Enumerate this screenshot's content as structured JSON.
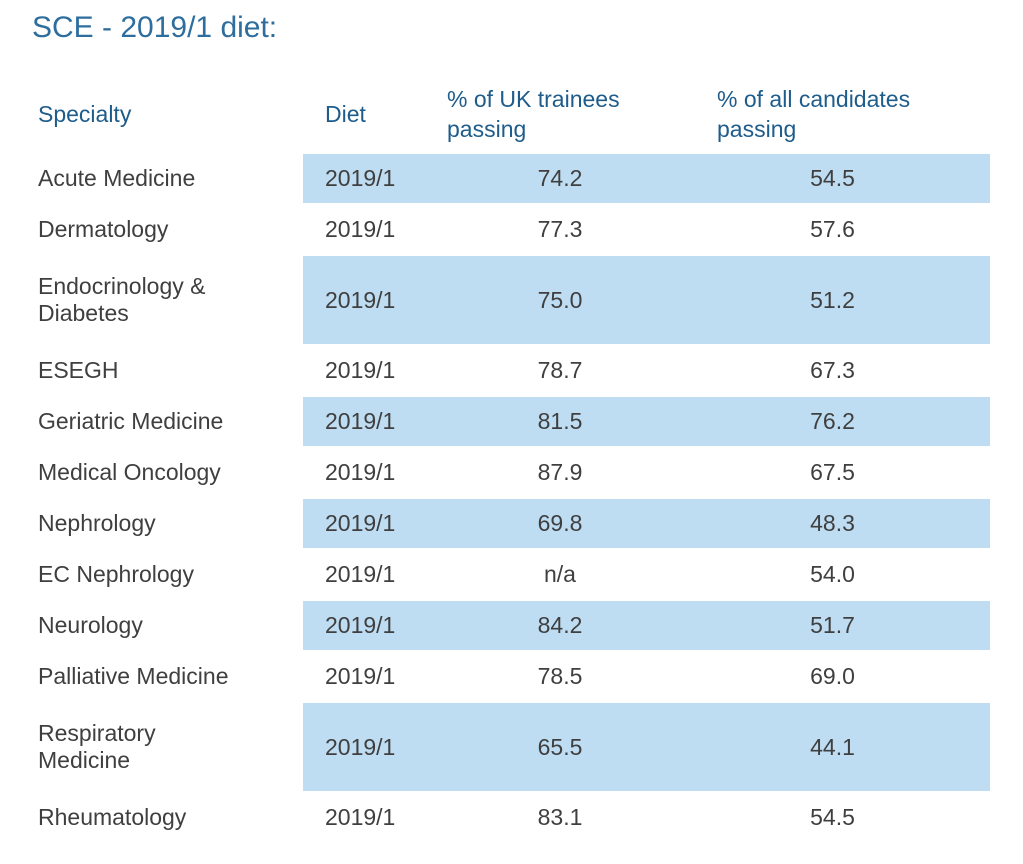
{
  "title": {
    "text": "SCE - 2019/1 diet:"
  },
  "colors": {
    "title_blue": "#2D6E9E",
    "header_blue": "#1E5C8C",
    "row_highlight_blue": "#BEDDF2",
    "body_text": "#3F3F3F",
    "background": "#FFFFFF"
  },
  "table": {
    "columns": [
      "Specialty",
      "Diet",
      "% of UK trainees\npassing",
      "% of all candidates\npassing"
    ],
    "rows": [
      {
        "specialty": "Acute Medicine",
        "diet": "2019/1",
        "uk_trainees": "74.2",
        "all_candidates": "54.5",
        "highlighted": true
      },
      {
        "specialty": "Dermatology",
        "diet": "2019/1",
        "uk_trainees": "77.3",
        "all_candidates": "57.6",
        "highlighted": false
      },
      {
        "specialty": "Endocrinology &\nDiabetes",
        "diet": "2019/1",
        "uk_trainees": "75.0",
        "all_candidates": "51.2",
        "highlighted": true
      },
      {
        "specialty": "ESEGH",
        "diet": "2019/1",
        "uk_trainees": "78.7",
        "all_candidates": "67.3",
        "highlighted": false
      },
      {
        "specialty": "Geriatric Medicine",
        "diet": "2019/1",
        "uk_trainees": "81.5",
        "all_candidates": "76.2",
        "highlighted": true
      },
      {
        "specialty": "Medical Oncology",
        "diet": "2019/1",
        "uk_trainees": "87.9",
        "all_candidates": "67.5",
        "highlighted": false
      },
      {
        "specialty": "Nephrology",
        "diet": "2019/1",
        "uk_trainees": "69.8",
        "all_candidates": "48.3",
        "highlighted": true
      },
      {
        "specialty": "EC Nephrology",
        "diet": "2019/1",
        "uk_trainees": "n/a",
        "all_candidates": "54.0",
        "highlighted": false
      },
      {
        "specialty": "Neurology",
        "diet": "2019/1",
        "uk_trainees": "84.2",
        "all_candidates": "51.7",
        "highlighted": true
      },
      {
        "specialty": "Palliative Medicine",
        "diet": "2019/1",
        "uk_trainees": "78.5",
        "all_candidates": "69.0",
        "highlighted": false
      },
      {
        "specialty": "Respiratory\nMedicine",
        "diet": "2019/1",
        "uk_trainees": "65.5",
        "all_candidates": "44.1",
        "highlighted": true
      },
      {
        "specialty": "Rheumatology",
        "diet": "2019/1",
        "uk_trainees": "83.1",
        "all_candidates": "54.5",
        "highlighted": false
      }
    ]
  }
}
